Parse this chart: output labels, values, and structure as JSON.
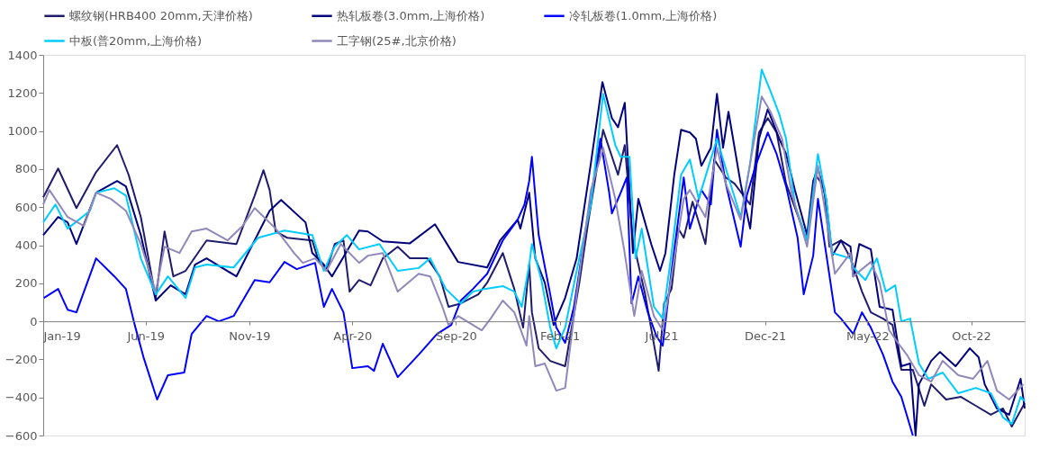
{
  "chart_data": {
    "type": "line",
    "legend": "top",
    "grid": false,
    "line_style": "solid",
    "marker": "none",
    "xlim": [
      "2019-01-01",
      "2022-12-19"
    ],
    "xticks": [
      {
        "value": "2019-01-01",
        "label": "Jan-19"
      },
      {
        "value": "2019-06-01",
        "label": "Jun-19"
      },
      {
        "value": "2019-11-01",
        "label": "Nov-19"
      },
      {
        "value": "2020-04-01",
        "label": "Apr-20"
      },
      {
        "value": "2020-09-01",
        "label": "Sep-20"
      },
      {
        "value": "2021-02-01",
        "label": "Feb-21"
      },
      {
        "value": "2021-07-01",
        "label": "Jul-21"
      },
      {
        "value": "2021-12-01",
        "label": "Dec-21"
      },
      {
        "value": "2022-05-01",
        "label": "May-22"
      },
      {
        "value": "2022-10-01",
        "label": "Oct-22"
      }
    ],
    "ylim": [
      -600,
      1400
    ],
    "yticks": [
      -600,
      -400,
      -200,
      0,
      200,
      400,
      600,
      800,
      1000,
      1200,
      1400
    ],
    "series": [
      {
        "name": "螺纹钢(HRB400 20mm,天津价格)",
        "color": "#1f1c6e",
        "x": [
          "2019-01-01",
          "2019-01-23",
          "2019-02-19",
          "2019-03-20",
          "2019-04-20",
          "2019-05-07",
          "2019-05-25",
          "2019-06-16",
          "2019-06-29",
          "2019-07-12",
          "2019-07-30",
          "2019-08-30",
          "2019-10-13",
          "2019-11-09",
          "2019-11-22",
          "2019-12-01",
          "2019-12-10",
          "2019-12-27",
          "2020-02-02",
          "2020-02-10",
          "2020-02-23",
          "2020-03-06",
          "2020-03-19",
          "2020-03-28",
          "2020-04-11",
          "2020-04-28",
          "2020-05-16",
          "2020-06-07",
          "2020-06-25",
          "2020-07-21",
          "2020-08-08",
          "2020-08-21",
          "2020-09-08",
          "2020-10-04",
          "2020-10-17",
          "2020-11-09",
          "2020-11-26",
          "2020-12-09",
          "2020-12-18",
          "2020-12-22",
          "2021-01-01",
          "2021-01-18",
          "2021-02-09",
          "2021-03-02",
          "2021-03-15",
          "2021-04-06",
          "2021-04-28",
          "2021-05-08",
          "2021-05-20",
          "2021-06-07",
          "2021-06-27",
          "2021-07-05",
          "2021-07-16",
          "2021-07-26",
          "2021-08-03",
          "2021-08-16",
          "2021-09-04",
          "2021-09-17",
          "2021-10-04",
          "2021-10-17",
          "2021-11-09",
          "2021-11-22",
          "2021-12-05",
          "2021-12-18",
          "2022-01-01",
          "2022-01-22",
          "2022-02-01",
          "2022-02-13",
          "2022-02-26",
          "2022-03-06",
          "2022-03-23",
          "2022-04-06",
          "2022-04-23",
          "2022-05-06",
          "2022-05-24",
          "2022-06-07",
          "2022-06-20",
          "2022-07-07",
          "2022-07-24",
          "2022-08-03",
          "2022-08-25",
          "2022-09-16",
          "2022-10-08",
          "2022-10-30",
          "2022-11-17",
          "2022-11-30",
          "2022-12-19"
        ],
        "values": [
          652,
          803,
          595,
          784,
          926,
          770,
          548,
          123,
          472,
          236,
          265,
          425,
          406,
          661,
          794,
          690,
          472,
          439,
          425,
          331,
          265,
          406,
          425,
          156,
          217,
          189,
          331,
          392,
          331,
          331,
          236,
          76,
          94,
          142,
          203,
          359,
          170,
          -33,
          300,
          47,
          -142,
          -208,
          -236,
          203,
          520,
          1006,
          770,
          926,
          425,
          142,
          -260,
          94,
          170,
          487,
          439,
          628,
          406,
          850,
          756,
          723,
          614,
          992,
          1068,
          992,
          723,
          520,
          425,
          770,
          709,
          392,
          425,
          331,
          156,
          47,
          14,
          -19,
          -255,
          -255,
          -444,
          -331,
          -411,
          -397,
          -444,
          -491,
          -458,
          -553,
          -430
        ]
      },
      {
        "name": "热轧板卷(3.0mm,上海价格)",
        "color": "#00007f",
        "x": [
          "2019-01-01",
          "2019-01-23",
          "2019-02-06",
          "2019-02-19",
          "2019-03-20",
          "2019-04-20",
          "2019-05-03",
          "2019-05-25",
          "2019-06-16",
          "2019-07-08",
          "2019-07-30",
          "2019-08-13",
          "2019-08-30",
          "2019-10-13",
          "2019-12-01",
          "2019-12-18",
          "2020-01-23",
          "2020-02-02",
          "2020-02-19",
          "2020-03-02",
          "2020-04-11",
          "2020-04-24",
          "2020-05-16",
          "2020-06-25",
          "2020-08-01",
          "2020-09-04",
          "2020-10-17",
          "2020-11-05",
          "2020-12-01",
          "2020-12-05",
          "2020-12-18",
          "2020-12-27",
          "2021-01-10",
          "2021-01-23",
          "2021-02-09",
          "2021-02-26",
          "2021-03-19",
          "2021-04-05",
          "2021-04-19",
          "2021-04-28",
          "2021-05-08",
          "2021-05-20",
          "2021-05-28",
          "2021-06-16",
          "2021-06-29",
          "2021-07-07",
          "2021-07-20",
          "2021-07-30",
          "2021-08-12",
          "2021-08-21",
          "2021-08-29",
          "2021-09-12",
          "2021-09-21",
          "2021-09-30",
          "2021-10-08",
          "2021-10-26",
          "2021-11-09",
          "2021-11-22",
          "2021-12-05",
          "2021-12-22",
          "2022-01-01",
          "2022-01-14",
          "2022-02-01",
          "2022-02-10",
          "2022-02-17",
          "2022-03-01",
          "2022-03-10",
          "2022-03-23",
          "2022-04-06",
          "2022-04-10",
          "2022-04-19",
          "2022-05-06",
          "2022-05-19",
          "2022-06-07",
          "2022-06-20",
          "2022-07-03",
          "2022-07-11",
          "2022-07-16",
          "2022-08-03",
          "2022-08-16",
          "2022-09-08",
          "2022-09-29",
          "2022-10-12",
          "2022-10-21",
          "2022-11-08",
          "2022-11-26",
          "2022-12-13",
          "2022-12-19"
        ],
        "values": [
          453,
          548,
          520,
          406,
          676,
          737,
          709,
          453,
          109,
          189,
          142,
          298,
          331,
          236,
          581,
          638,
          520,
          359,
          298,
          236,
          477,
          472,
          420,
          410,
          510,
          312,
          283,
          425,
          534,
          487,
          676,
          331,
          203,
          -19,
          123,
          331,
          831,
          1257,
          1068,
          1020,
          1148,
          359,
          643,
          406,
          265,
          359,
          770,
          1006,
          992,
          959,
          817,
          912,
          1195,
          912,
          1101,
          723,
          487,
          959,
          1115,
          959,
          879,
          690,
          453,
          737,
          803,
          643,
          345,
          425,
          392,
          236,
          406,
          378,
          76,
          61,
          -236,
          -222,
          -600,
          -331,
          -208,
          -161,
          -236,
          -142,
          -189,
          -331,
          -458,
          -491,
          -302,
          -458
        ]
      },
      {
        "name": "冷轧板卷(1.0mm,上海价格)",
        "color": "#0000ff",
        "x": [
          "2019-01-02",
          "2019-01-23",
          "2019-02-06",
          "2019-02-19",
          "2019-03-20",
          "2019-04-16",
          "2019-05-03",
          "2019-05-16",
          "2019-05-29",
          "2019-06-18",
          "2019-07-04",
          "2019-07-28",
          "2019-08-08",
          "2019-08-30",
          "2019-09-17",
          "2019-10-09",
          "2019-11-09",
          "2019-12-01",
          "2019-12-23",
          "2020-01-10",
          "2020-02-06",
          "2020-02-19",
          "2020-03-02",
          "2020-03-19",
          "2020-04-01",
          "2020-04-24",
          "2020-05-03",
          "2020-05-16",
          "2020-06-07",
          "2020-07-08",
          "2020-08-04",
          "2020-08-25",
          "2020-09-08",
          "2020-09-26",
          "2020-10-17",
          "2020-11-09",
          "2020-12-01",
          "2020-12-11",
          "2020-12-18",
          "2020-12-22",
          "2021-01-01",
          "2021-01-18",
          "2021-01-27",
          "2021-02-09",
          "2021-02-22",
          "2021-03-10",
          "2021-03-23",
          "2021-04-02",
          "2021-04-15",
          "2021-04-19",
          "2021-05-02",
          "2021-05-11",
          "2021-05-18",
          "2021-05-28",
          "2021-06-11",
          "2021-06-24",
          "2021-07-03",
          "2021-07-16",
          "2021-08-03",
          "2021-08-12",
          "2021-08-29",
          "2021-09-12",
          "2021-09-21",
          "2021-10-04",
          "2021-10-26",
          "2021-11-04",
          "2021-11-17",
          "2021-12-05",
          "2021-12-18",
          "2022-01-01",
          "2022-01-18",
          "2022-01-27",
          "2022-02-10",
          "2022-02-17",
          "2022-03-01",
          "2022-03-14",
          "2022-03-23",
          "2022-04-10",
          "2022-04-23",
          "2022-05-06",
          "2022-05-24",
          "2022-06-07",
          "2022-06-20",
          "2022-07-07"
        ],
        "values": [
          123,
          170,
          61,
          47,
          331,
          236,
          170,
          -19,
          -189,
          -411,
          -283,
          -269,
          -66,
          28,
          0,
          28,
          217,
          205,
          312,
          274,
          307,
          76,
          170,
          47,
          -246,
          -236,
          -260,
          -118,
          -293,
          -175,
          -66,
          -19,
          109,
          170,
          250,
          425,
          534,
          614,
          737,
          864,
          453,
          142,
          -33,
          -113,
          76,
          453,
          737,
          959,
          676,
          567,
          676,
          756,
          94,
          236,
          47,
          -80,
          -128,
          265,
          756,
          487,
          690,
          614,
          1006,
          723,
          392,
          661,
          817,
          992,
          879,
          709,
          439,
          142,
          345,
          643,
          359,
          47,
          14,
          -66,
          47,
          -33,
          -175,
          -317,
          -397,
          -600
        ]
      },
      {
        "name": "中板(普20mm,上海价格)",
        "color": "#00ccff",
        "x": [
          "2019-01-01",
          "2019-01-19",
          "2019-02-06",
          "2019-03-11",
          "2019-03-20",
          "2019-04-16",
          "2019-05-03",
          "2019-05-25",
          "2019-06-16",
          "2019-07-04",
          "2019-07-30",
          "2019-08-13",
          "2019-08-30",
          "2019-10-09",
          "2019-11-14",
          "2019-12-23",
          "2020-02-02",
          "2020-02-19",
          "2020-03-06",
          "2020-03-24",
          "2020-04-11",
          "2020-05-11",
          "2020-06-07",
          "2020-07-08",
          "2020-07-25",
          "2020-08-17",
          "2020-09-08",
          "2020-09-26",
          "2020-10-13",
          "2020-11-09",
          "2020-11-26",
          "2020-12-07",
          "2020-12-18",
          "2020-12-22",
          "2021-01-05",
          "2021-01-18",
          "2021-01-27",
          "2021-02-09",
          "2021-02-26",
          "2021-03-19",
          "2021-04-06",
          "2021-04-24",
          "2021-05-02",
          "2021-05-15",
          "2021-05-24",
          "2021-06-02",
          "2021-06-20",
          "2021-07-03",
          "2021-07-16",
          "2021-07-30",
          "2021-08-12",
          "2021-08-25",
          "2021-09-21",
          "2021-10-04",
          "2021-10-26",
          "2021-11-09",
          "2021-11-26",
          "2021-12-09",
          "2021-12-22",
          "2022-01-01",
          "2022-01-14",
          "2022-02-01",
          "2022-02-17",
          "2022-03-01",
          "2022-03-10",
          "2022-04-06",
          "2022-04-10",
          "2022-04-28",
          "2022-05-15",
          "2022-05-28",
          "2022-06-11",
          "2022-06-20",
          "2022-07-03",
          "2022-07-16",
          "2022-07-30",
          "2022-08-20",
          "2022-09-12",
          "2022-10-08",
          "2022-10-30",
          "2022-11-17",
          "2022-11-30",
          "2022-12-13",
          "2022-12-19"
        ],
        "values": [
          520,
          614,
          487,
          581,
          676,
          699,
          661,
          331,
          142,
          236,
          123,
          283,
          298,
          283,
          439,
          477,
          453,
          265,
          392,
          453,
          378,
          406,
          265,
          280,
          331,
          170,
          94,
          156,
          170,
          185,
          156,
          76,
          298,
          406,
          217,
          -33,
          -142,
          -33,
          265,
          614,
          1195,
          926,
          864,
          864,
          331,
          487,
          76,
          14,
          359,
          770,
          850,
          643,
          959,
          803,
          548,
          831,
          1323,
          1209,
          1087,
          959,
          614,
          425,
          879,
          643,
          359,
          331,
          283,
          217,
          331,
          156,
          189,
          0,
          14,
          -222,
          -302,
          -269,
          -378,
          -350,
          -378,
          -505,
          -539,
          -397,
          -420
        ]
      },
      {
        "name": "工字钢(25#,北京价格)",
        "color": "#9088bb",
        "x": [
          "2019-01-01",
          "2019-01-10",
          "2019-02-06",
          "2019-03-02",
          "2019-03-20",
          "2019-04-11",
          "2019-05-03",
          "2019-05-25",
          "2019-06-16",
          "2019-06-29",
          "2019-07-21",
          "2019-08-08",
          "2019-08-30",
          "2019-09-30",
          "2019-10-22",
          "2019-11-09",
          "2019-12-10",
          "2020-01-06",
          "2020-01-19",
          "2020-02-06",
          "2020-02-23",
          "2020-03-15",
          "2020-04-11",
          "2020-04-24",
          "2020-05-16",
          "2020-06-07",
          "2020-07-08",
          "2020-07-25",
          "2020-08-12",
          "2020-08-21",
          "2020-09-04",
          "2020-10-09",
          "2020-10-22",
          "2020-11-09",
          "2020-11-26",
          "2020-12-14",
          "2020-12-18",
          "2020-12-27",
          "2021-01-10",
          "2021-01-27",
          "2021-02-09",
          "2021-02-26",
          "2021-03-19",
          "2021-04-06",
          "2021-04-24",
          "2021-05-07",
          "2021-05-22",
          "2021-06-02",
          "2021-06-20",
          "2021-07-03",
          "2021-07-16",
          "2021-08-03",
          "2021-08-12",
          "2021-09-04",
          "2021-09-21",
          "2021-10-04",
          "2021-10-26",
          "2021-11-09",
          "2021-11-26",
          "2021-12-09",
          "2021-12-26",
          "2022-01-09",
          "2022-02-01",
          "2022-02-17",
          "2022-03-01",
          "2022-03-14",
          "2022-04-06",
          "2022-04-10",
          "2022-05-06",
          "2022-05-19",
          "2022-06-02",
          "2022-06-15",
          "2022-06-28",
          "2022-07-16",
          "2022-08-03",
          "2022-08-20",
          "2022-09-12",
          "2022-10-04",
          "2022-10-25",
          "2022-11-08",
          "2022-11-26",
          "2022-12-17"
        ],
        "values": [
          614,
          690,
          548,
          501,
          676,
          643,
          581,
          406,
          156,
          392,
          359,
          472,
          487,
          425,
          501,
          595,
          487,
          359,
          307,
          331,
          265,
          406,
          307,
          345,
          359,
          156,
          250,
          236,
          76,
          -19,
          28,
          -47,
          14,
          109,
          47,
          -128,
          28,
          -236,
          -222,
          -364,
          -350,
          142,
          690,
          912,
          643,
          378,
          28,
          265,
          28,
          -47,
          236,
          643,
          690,
          548,
          912,
          723,
          534,
          831,
          1181,
          1101,
          959,
          676,
          392,
          817,
          548,
          250,
          359,
          236,
          312,
          203,
          -47,
          -113,
          -175,
          -283,
          -317,
          -208,
          -283,
          -302,
          -208,
          -364,
          -411,
          -331
        ]
      }
    ]
  }
}
